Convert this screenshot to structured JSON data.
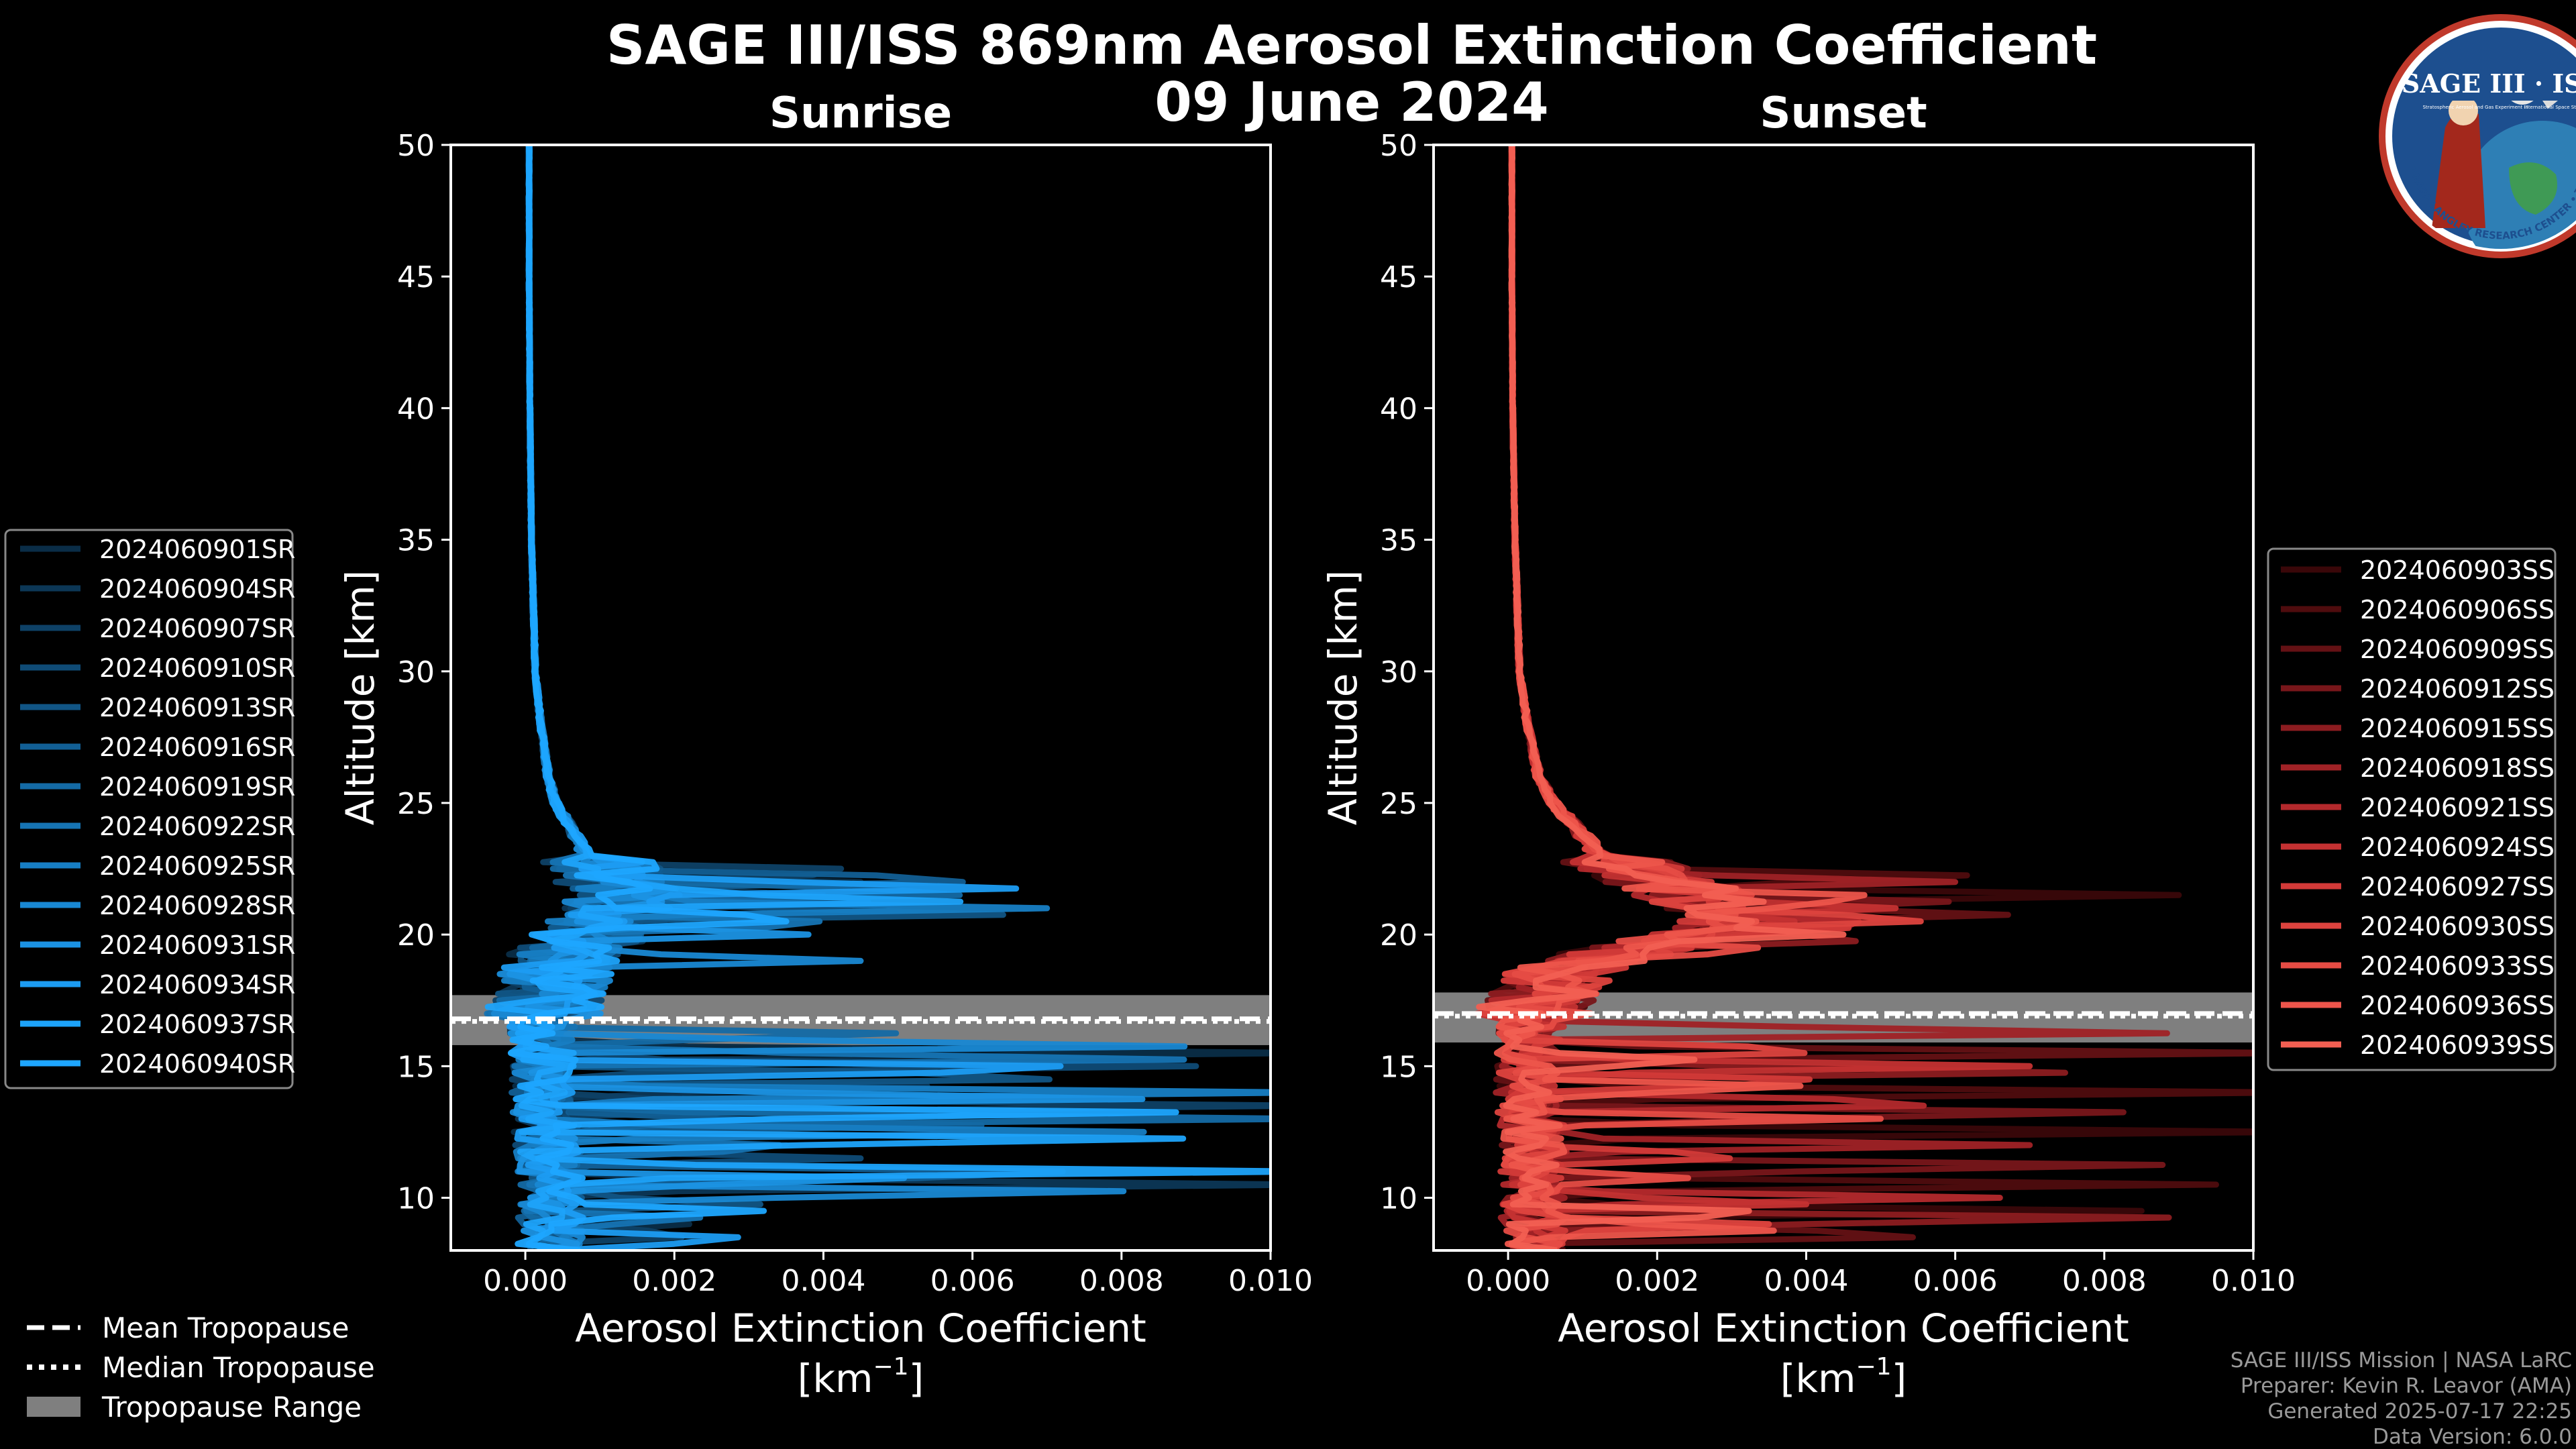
{
  "header": {
    "title_line1": "SAGE III/ISS 869nm Aerosol Extinction Coefficient",
    "title_line2": "09 June 2024"
  },
  "logo": {
    "top_text": "SAGE III · ISS",
    "small_left": "Stratospheric Aerosol and Gas Experiment III",
    "small_right": "International Space Station",
    "ring_text": "BALL • NASA LANGLEY RESEARCH CENTER • TAS-I • ESA"
  },
  "legend_left": {
    "items": [
      "2024060901SR",
      "2024060904SR",
      "2024060907SR",
      "2024060910SR",
      "2024060913SR",
      "2024060916SR",
      "2024060919SR",
      "2024060922SR",
      "2024060925SR",
      "2024060928SR",
      "2024060931SR",
      "2024060934SR",
      "2024060937SR",
      "2024060940SR"
    ],
    "colors": [
      "#0a2d47",
      "#0c3756",
      "#0e4166",
      "#0f4b76",
      "#115585",
      "#125f95",
      "#146aa5",
      "#1674b4",
      "#177ec4",
      "#1988d3",
      "#1b92e3",
      "#1c9cf2",
      "#1da3fa",
      "#1ea6ff"
    ]
  },
  "legend_right": {
    "items": [
      "2024060903SS",
      "2024060906SS",
      "2024060909SS",
      "2024060912SS",
      "2024060915SS",
      "2024060918SS",
      "2024060921SS",
      "2024060924SS",
      "2024060927SS",
      "2024060930SS",
      "2024060933SS",
      "2024060936SS",
      "2024060939SS"
    ],
    "colors": [
      "#3a0709",
      "#4f0c0e",
      "#641114",
      "#78161a",
      "#8c1c20",
      "#a02226",
      "#b3292c",
      "#c43132",
      "#d23a38",
      "#dd433e",
      "#e64c44",
      "#ed554b",
      "#f25f52"
    ]
  },
  "legend_bottom": {
    "mean": "Mean Tropopause",
    "median": "Median Tropopause",
    "range": "Tropopause Range"
  },
  "credits": {
    "line1": "SAGE III/ISS Mission | NASA LaRC",
    "line2": "Preparer: Kevin R. Leavor (AMA)",
    "line3": "Generated 2025-07-17 22:25",
    "line4": "Data Version: 6.0.0"
  },
  "chart_data": [
    {
      "type": "line",
      "title": "Sunrise",
      "xlabel": "Aerosol Extinction Coefficient",
      "xlabel_units": "[km",
      "xlabel_units_exp": "−1",
      "ylabel": "Altitude [km]",
      "xlim": [
        -0.001,
        0.01
      ],
      "ylim": [
        8,
        50
      ],
      "xticks": [
        0.0,
        0.002,
        0.004,
        0.006,
        0.008,
        0.01
      ],
      "xtick_labels": [
        "0.000",
        "0.002",
        "0.004",
        "0.006",
        "0.008",
        "0.010"
      ],
      "yticks": [
        10,
        15,
        20,
        25,
        30,
        35,
        40,
        45,
        50
      ],
      "tropopause": {
        "mean": 16.8,
        "median": 16.7,
        "range": [
          15.8,
          17.7
        ]
      },
      "base_profile": {
        "alt": [
          50,
          45,
          40,
          35,
          30,
          28,
          26,
          25,
          24,
          23,
          22.5,
          22,
          21.5,
          21,
          20.5,
          20,
          19.5,
          19,
          18.5,
          18,
          17,
          16,
          15,
          14,
          13,
          12,
          11,
          10,
          9,
          8
        ],
        "ext": [
          5e-05,
          5e-05,
          6e-05,
          8e-05,
          0.00013,
          0.0002,
          0.0003,
          0.0004,
          0.0006,
          0.0008,
          0.001,
          0.0011,
          0.0012,
          0.0012,
          0.001,
          0.0008,
          0.0006,
          0.0004,
          0.0003,
          0.00025,
          0.0002,
          0.00018,
          0.00018,
          0.0002,
          0.00022,
          0.00025,
          0.0003,
          0.0003,
          0.0003,
          0.0003
        ]
      },
      "series": [
        {
          "name": "2024060901SR",
          "spikes": [
            [
              22.0,
              0.0045
            ],
            [
              15.5,
              0.0105
            ],
            [
              12.0,
              0.0035
            ],
            [
              9.0,
              0.0022
            ]
          ]
        },
        {
          "name": "2024060904SR",
          "spikes": [
            [
              21.5,
              0.004
            ],
            [
              14.2,
              0.0065
            ],
            [
              10.5,
              0.0105
            ]
          ]
        },
        {
          "name": "2024060907SR",
          "spikes": [
            [
              22.4,
              0.006
            ],
            [
              13.5,
              0.0105
            ],
            [
              8.6,
              0.003
            ]
          ]
        },
        {
          "name": "2024060910SR",
          "spikes": [
            [
              21.2,
              0.0052
            ],
            [
              15.0,
              0.009
            ],
            [
              11.5,
              0.0045
            ]
          ]
        },
        {
          "name": "2024060913SR",
          "spikes": [
            [
              20.8,
              0.0075
            ],
            [
              14.6,
              0.0105
            ],
            [
              9.8,
              0.0038
            ]
          ]
        },
        {
          "name": "2024060916SR",
          "spikes": [
            [
              22.1,
              0.0081
            ],
            [
              12.8,
              0.0072
            ],
            [
              10.9,
              0.0105
            ]
          ]
        },
        {
          "name": "2024060919SR",
          "spikes": [
            [
              21.6,
              0.0085
            ],
            [
              16.2,
              0.006
            ],
            [
              13.0,
              0.0105
            ]
          ]
        },
        {
          "name": "2024060922SR",
          "spikes": [
            [
              20.4,
              0.005
            ],
            [
              15.3,
              0.0105
            ],
            [
              11.9,
              0.005
            ],
            [
              9.2,
              0.0028
            ]
          ]
        },
        {
          "name": "2024060925SR",
          "spikes": [
            [
              21.0,
              0.007
            ],
            [
              14.0,
              0.0105
            ],
            [
              12.5,
              0.0083
            ]
          ]
        },
        {
          "name": "2024060928SR",
          "spikes": [
            [
              19.0,
              0.0045
            ],
            [
              15.8,
              0.0105
            ],
            [
              10.2,
              0.0095
            ]
          ]
        },
        {
          "name": "2024060931SR",
          "spikes": [
            [
              20.0,
              0.0038
            ],
            [
              13.8,
              0.0098
            ],
            [
              10.7,
              0.006
            ]
          ]
        },
        {
          "name": "2024060934SR",
          "spikes": [
            [
              21.8,
              0.0078
            ],
            [
              14.9,
              0.0105
            ],
            [
              8.4,
              0.004
            ]
          ]
        },
        {
          "name": "2024060937SR",
          "spikes": [
            [
              21.3,
              0.0066
            ],
            [
              12.2,
              0.0105
            ],
            [
              11.0,
              0.0105
            ]
          ]
        },
        {
          "name": "2024060940SR",
          "spikes": [
            [
              20.6,
              0.0046
            ],
            [
              13.2,
              0.0105
            ],
            [
              9.5,
              0.0032
            ]
          ]
        }
      ]
    },
    {
      "type": "line",
      "title": "Sunset",
      "xlabel": "Aerosol Extinction Coefficient",
      "xlabel_units": "[km",
      "xlabel_units_exp": "−1",
      "ylabel": "Altitude [km]",
      "xlim": [
        -0.001,
        0.01
      ],
      "ylim": [
        8,
        50
      ],
      "xticks": [
        0.0,
        0.002,
        0.004,
        0.006,
        0.008,
        0.01
      ],
      "xtick_labels": [
        "0.000",
        "0.002",
        "0.004",
        "0.006",
        "0.008",
        "0.010"
      ],
      "yticks": [
        10,
        15,
        20,
        25,
        30,
        35,
        40,
        45,
        50
      ],
      "tropopause": {
        "mean": 17.0,
        "median": 16.9,
        "range": [
          15.9,
          17.8
        ]
      },
      "base_profile": {
        "alt": [
          50,
          45,
          40,
          35,
          30,
          28,
          26,
          25,
          24,
          23,
          22.5,
          22,
          21.5,
          21,
          20.5,
          20,
          19.5,
          19,
          18.5,
          18,
          17,
          16,
          15,
          14,
          13,
          12,
          11,
          10,
          9,
          8
        ],
        "ext": [
          5e-05,
          5e-05,
          6e-05,
          9e-05,
          0.00015,
          0.00025,
          0.0004,
          0.0006,
          0.0009,
          0.0012,
          0.0016,
          0.002,
          0.0024,
          0.0028,
          0.003,
          0.0026,
          0.0018,
          0.001,
          0.0006,
          0.0004,
          0.0003,
          0.00025,
          0.0002,
          0.00022,
          0.00025,
          0.0003,
          0.0003,
          0.0003,
          0.0003,
          0.0003
        ]
      },
      "series": [
        {
          "name": "2024060903SS",
          "spikes": [
            [
              21.5,
              0.009
            ],
            [
              12.5,
              0.0105
            ],
            [
              9.5,
              0.0085
            ]
          ]
        },
        {
          "name": "2024060906SS",
          "spikes": [
            [
              22.2,
              0.007
            ],
            [
              14.0,
              0.0105
            ],
            [
              10.5,
              0.0095
            ]
          ]
        },
        {
          "name": "2024060909SS",
          "spikes": [
            [
              20.8,
              0.0075
            ],
            [
              15.5,
              0.0105
            ],
            [
              8.6,
              0.008
            ]
          ]
        },
        {
          "name": "2024060912SS",
          "spikes": [
            [
              21.2,
              0.0065
            ],
            [
              13.2,
              0.0098
            ],
            [
              11.2,
              0.0105
            ]
          ]
        },
        {
          "name": "2024060915SS",
          "spikes": [
            [
              19.8,
              0.005
            ],
            [
              14.8,
              0.009
            ],
            [
              9.2,
              0.0105
            ]
          ]
        },
        {
          "name": "2024060918SS",
          "spikes": [
            [
              22.0,
              0.006
            ],
            [
              16.3,
              0.0105
            ],
            [
              12.0,
              0.007
            ]
          ]
        },
        {
          "name": "2024060921SS",
          "spikes": [
            [
              20.4,
              0.0055
            ],
            [
              13.6,
              0.0082
            ],
            [
              10.0,
              0.0066
            ]
          ]
        },
        {
          "name": "2024060924SS",
          "spikes": [
            [
              21.0,
              0.0052
            ],
            [
              15.0,
              0.007
            ],
            [
              9.8,
              0.0048
            ]
          ]
        },
        {
          "name": "2024060927SS",
          "spikes": [
            [
              20.2,
              0.0048
            ],
            [
              14.4,
              0.006
            ],
            [
              11.6,
              0.0045
            ]
          ]
        },
        {
          "name": "2024060930SS",
          "spikes": [
            [
              20.6,
              0.0066
            ],
            [
              15.6,
              0.0058
            ],
            [
              9.0,
              0.0035
            ]
          ]
        },
        {
          "name": "2024060933SS",
          "spikes": [
            [
              19.4,
              0.004
            ],
            [
              13.0,
              0.005
            ],
            [
              10.8,
              0.0028
            ]
          ]
        },
        {
          "name": "2024060936SS",
          "spikes": [
            [
              21.4,
              0.0056
            ],
            [
              14.2,
              0.0046
            ],
            [
              8.8,
              0.0042
            ]
          ]
        },
        {
          "name": "2024060939SS",
          "spikes": [
            [
              20.0,
              0.0045
            ],
            [
              15.2,
              0.003
            ],
            [
              9.4,
              0.0046
            ]
          ]
        }
      ]
    }
  ]
}
